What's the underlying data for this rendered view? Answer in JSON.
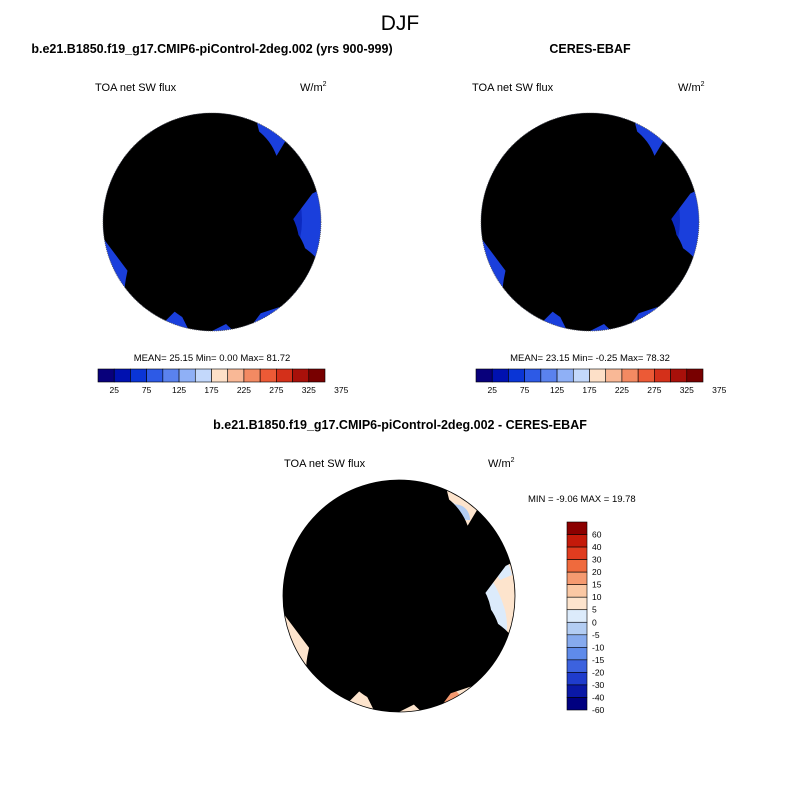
{
  "figure": {
    "title": "DJF"
  },
  "panels": [
    {
      "id": "model",
      "title": "b.e21.B1850.f19_g17.CMIP6-piControl-2deg.002 (yrs 900-999)",
      "variable": "TOA net SW flux",
      "units_base": "W/m",
      "units_exp": "2",
      "stats": {
        "mean_label": "MEAN=",
        "mean": "25.15",
        "min_label": "Min=",
        "min": "0.00",
        "max_label": "Max=",
        "max": "81.72"
      }
    },
    {
      "id": "obs",
      "title": "CERES-EBAF",
      "variable": "TOA net SW flux",
      "units_base": "W/m",
      "units_exp": "2",
      "stats": {
        "mean_label": "MEAN=",
        "mean": "23.15",
        "min_label": "Min=",
        "min": "-0.25",
        "max_label": "Max=",
        "max": "78.32"
      }
    },
    {
      "id": "diff",
      "title": "b.e21.B1850.f19_g17.CMIP6-piControl-2deg.002 - CERES-EBAF",
      "variable": "TOA net SW flux",
      "units_base": "W/m",
      "units_exp": "2",
      "stats_text": "MIN =  -9.06 MAX =  19.78"
    }
  ],
  "colorbars": {
    "absolute": {
      "orientation": "horizontal",
      "colors": [
        "#08007b",
        "#0011b0",
        "#0a35d6",
        "#2d5ae6",
        "#5a82ee",
        "#8fb0f6",
        "#c3d8fb",
        "#fde0c8",
        "#f9b896",
        "#f38a62",
        "#ec5a36",
        "#d4301a",
        "#a8100a",
        "#780000"
      ],
      "tick_labels": [
        "25",
        "75",
        "125",
        "175",
        "225",
        "275",
        "325",
        "375"
      ]
    },
    "difference": {
      "orientation": "vertical",
      "colors_top_to_bottom": [
        "#8b0000",
        "#c41a0a",
        "#e03c1f",
        "#ef6a3d",
        "#f59a70",
        "#fac8a4",
        "#fde4cd",
        "#dcebfb",
        "#b3cdf3",
        "#86aaee",
        "#5f8bea",
        "#3c62de",
        "#1f3ccc",
        "#0a18a6",
        "#000080"
      ],
      "tick_labels_top_to_bottom": [
        "60",
        "40",
        "30",
        "20",
        "15",
        "10",
        "5",
        "0",
        "-5",
        "-10",
        "-15",
        "-20",
        "-30",
        "-40",
        "-60"
      ]
    }
  },
  "map_colors": {
    "abs_outer": "#1a3fdc",
    "abs_mid": "#0c2ac0",
    "abs_inner": "#081aa6",
    "abs_core": "#06168f",
    "diff_background": "#fde4cd",
    "diff_neg_light": "#dcebfb",
    "diff_neg_medium": "#b3cdf3",
    "diff_pos_medium": "#f59a70",
    "missing": "#ffffff"
  }
}
